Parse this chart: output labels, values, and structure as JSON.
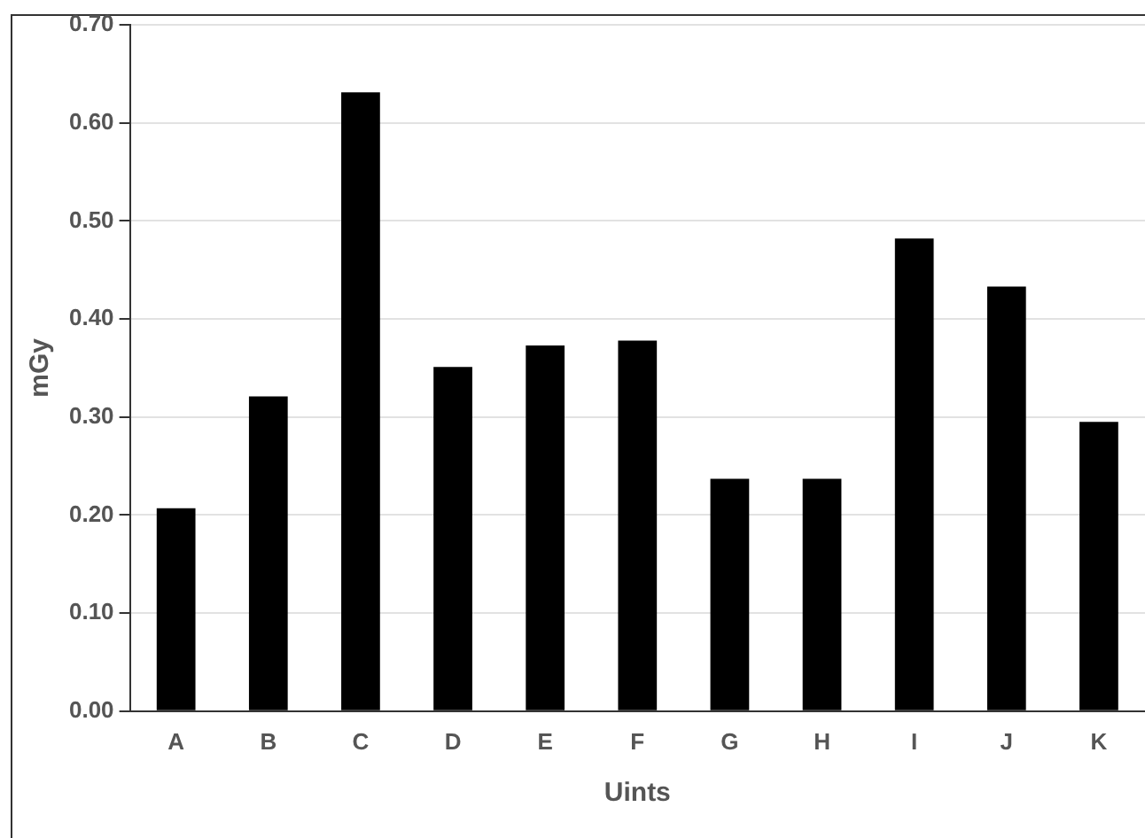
{
  "chart_data": {
    "type": "bar",
    "xlabel": "Uints",
    "ylabel": "mGy",
    "categories": [
      "A",
      "B",
      "C",
      "D",
      "E",
      "F",
      "G",
      "H",
      "I",
      "J",
      "K"
    ],
    "values": [
      0.207,
      0.321,
      0.631,
      0.351,
      0.373,
      0.378,
      0.237,
      0.237,
      0.482,
      0.433,
      0.295
    ],
    "color": "#000000",
    "ylim": [
      0,
      0.7
    ],
    "yticks": [
      {
        "value": 0,
        "label": "0.00"
      },
      {
        "value": 0.1,
        "label": "0.10"
      },
      {
        "value": 0.2,
        "label": "0.20"
      },
      {
        "value": 0.3,
        "label": "0.30"
      },
      {
        "value": 0.4,
        "label": "0.40"
      },
      {
        "value": 0.5,
        "label": "0.50"
      },
      {
        "value": 0.6,
        "label": "0.60"
      },
      {
        "value": 0.7,
        "label": "0.70"
      }
    ],
    "grid": "y",
    "legend": false
  }
}
